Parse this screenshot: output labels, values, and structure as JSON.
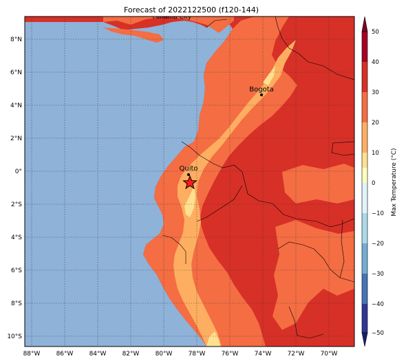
{
  "title": "Forecast of 2022122500 (f120-144)",
  "map": {
    "lon_ticks": [
      "88°W",
      "86°W",
      "84°W",
      "82°W",
      "80°W",
      "78°W",
      "76°W",
      "74°W",
      "72°W",
      "70°W"
    ],
    "lat_ticks": [
      "8°N",
      "6°N",
      "4°N",
      "2°N",
      "0°",
      "2°S",
      "4°S",
      "6°S",
      "8°S",
      "10°S"
    ],
    "lon_range": [
      -88.5,
      -69.25
    ],
    "lat_range": [
      -10.6,
      9.3
    ],
    "ocean_color": "#8fb2d8",
    "cities": [
      {
        "name": "Panama City",
        "lon": -79.5,
        "lat": 9.0,
        "marker": "label-only"
      },
      {
        "name": "Bogota",
        "lon": -74.1,
        "lat": 4.6,
        "marker": "dot"
      },
      {
        "name": "Quito",
        "lon": -78.5,
        "lat": -0.2,
        "marker": "dot"
      },
      {
        "name": "",
        "lon": -78.4,
        "lat": -0.7,
        "marker": "red-star"
      }
    ]
  },
  "colorbar": {
    "label": "Max Temperature (°C)",
    "ticks": [
      "50",
      "40",
      "30",
      "20",
      "10",
      "0",
      "−10",
      "−20",
      "−30",
      "−40",
      "−50"
    ],
    "colors_top_to_bottom": [
      "#a50026",
      "#d73027",
      "#f46d43",
      "#fdae61",
      "#fee090",
      "#ffffbf",
      "#e0f3f8",
      "#abd9e9",
      "#74add1",
      "#4575b4",
      "#313695"
    ]
  }
}
